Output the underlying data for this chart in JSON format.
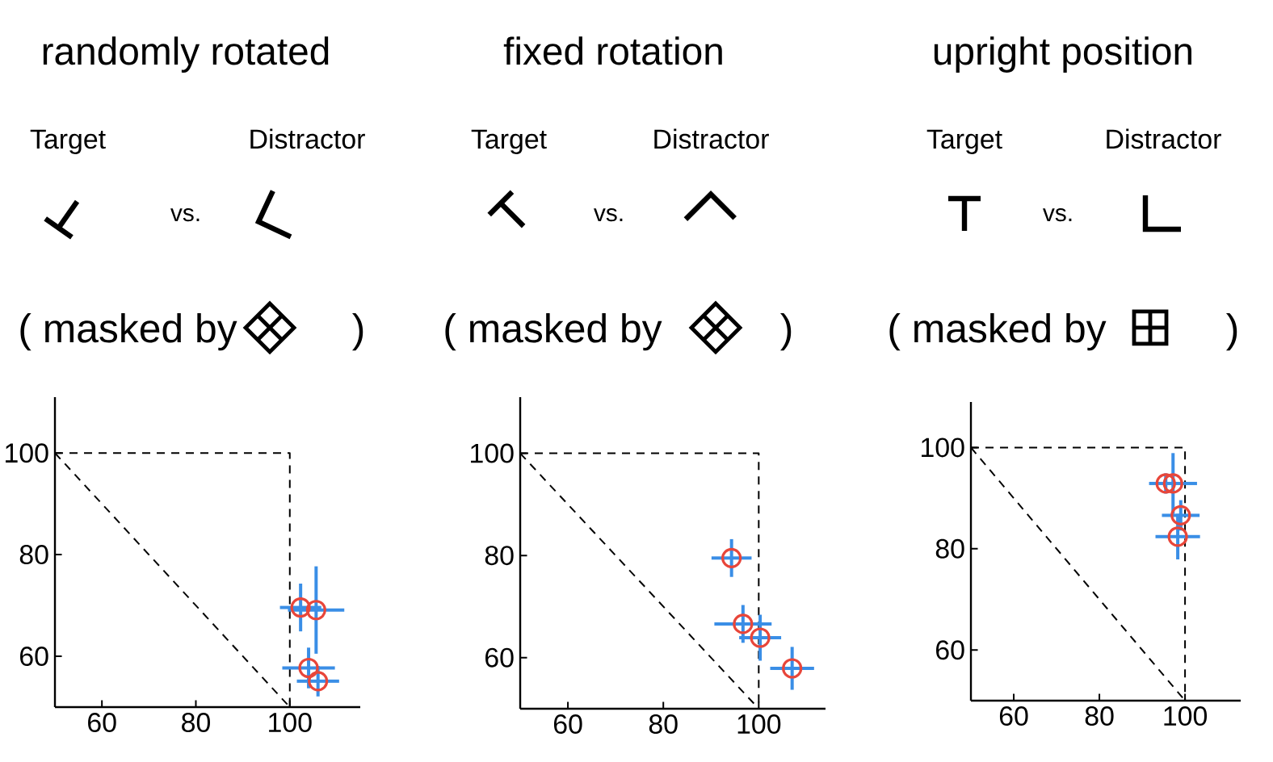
{
  "chart_data": [
    {
      "type": "scatter",
      "title": "randomly rotated",
      "annotations": [
        "Target",
        "vs.",
        "Distractor",
        "( masked by",
        ")"
      ],
      "xlim": [
        50,
        115
      ],
      "ylim": [
        50,
        111
      ],
      "xticks": [
        60,
        80,
        100
      ],
      "yticks": [
        60,
        80,
        100
      ],
      "series": [
        {
          "type": "scatter",
          "color": "#e8463a",
          "marker": "circle",
          "x": [
            102.3,
            105.6,
            104,
            106
          ],
          "values": [
            69.6,
            69.1,
            57.7,
            55.1
          ],
          "errors": [
            4.7,
            8.6,
            4,
            3
          ],
          "xerrors": [
            4.4,
            6,
            5.6,
            4.5
          ]
        },
        {
          "type": "line",
          "color": "#000000",
          "marker": "none",
          "line_style": "dashed",
          "x": [
            50,
            100,
            100
          ],
          "values": [
            100,
            100,
            50
          ]
        },
        {
          "type": "line",
          "color": "#000000",
          "marker": "none",
          "line_style": "dashed",
          "x": [
            50,
            100
          ],
          "values": [
            100,
            50
          ]
        }
      ]
    },
    {
      "type": "scatter",
      "title": "fixed rotation",
      "annotations": [
        "Target",
        "vs.",
        "Distractor",
        "( masked by",
        ")"
      ],
      "xlim": [
        50,
        114
      ],
      "ylim": [
        50,
        111
      ],
      "xticks": [
        60,
        80,
        100
      ],
      "yticks": [
        60,
        80,
        100
      ],
      "series": [
        {
          "type": "scatter",
          "color": "#e8463a",
          "marker": "circle",
          "x": [
            94.3,
            96.7,
            100.3,
            107
          ],
          "values": [
            79.5,
            66.6,
            63.9,
            57.9
          ],
          "errors": [
            3.7,
            3.7,
            4.5,
            4.2
          ],
          "xerrors": [
            4.2,
            6,
            4.4,
            4.6
          ]
        },
        {
          "type": "line",
          "color": "#000000",
          "marker": "none",
          "line_style": "dashed",
          "x": [
            50,
            100,
            100
          ],
          "values": [
            100,
            100,
            50
          ]
        },
        {
          "type": "line",
          "color": "#000000",
          "marker": "none",
          "line_style": "dashed",
          "x": [
            50,
            100
          ],
          "values": [
            100,
            50
          ]
        }
      ]
    },
    {
      "type": "scatter",
      "title": "upright position",
      "annotations": [
        "Target",
        "vs.",
        "Distractor",
        "( masked by",
        ")"
      ],
      "xlim": [
        50,
        113
      ],
      "ylim": [
        50,
        109
      ],
      "xticks": [
        60,
        80,
        100
      ],
      "yticks": [
        60,
        80,
        100
      ],
      "series": [
        {
          "type": "scatter",
          "color": "#e8463a",
          "marker": "circle",
          "x": [
            95.5,
            97.2,
            99,
            98.3
          ],
          "values": [
            92.9,
            92.9,
            86.6,
            82.4
          ],
          "errors": [
            2,
            6,
            3,
            4.5
          ],
          "xerrors": [
            null,
            5.6,
            4.4,
            5.2
          ]
        },
        {
          "type": "line",
          "color": "#000000",
          "marker": "none",
          "line_style": "dashed",
          "x": [
            50,
            100,
            100
          ],
          "values": [
            100,
            100,
            50
          ]
        },
        {
          "type": "line",
          "color": "#000000",
          "marker": "none",
          "line_style": "dashed",
          "x": [
            50,
            100
          ],
          "values": [
            100,
            50
          ]
        }
      ]
    }
  ]
}
